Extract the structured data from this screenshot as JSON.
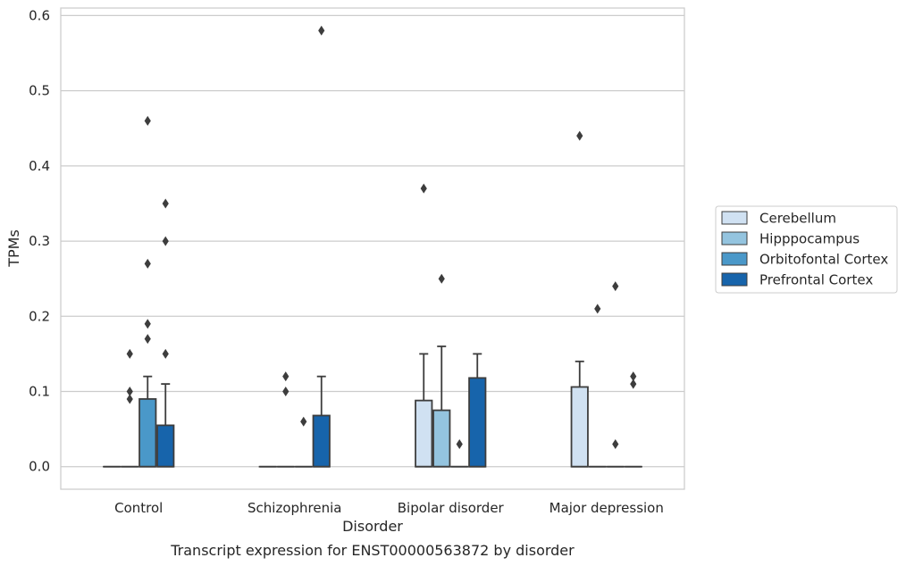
{
  "chart_data": {
    "type": "box",
    "title": "Transcript expression for ENST00000563872 by disorder",
    "xlabel": "Disorder",
    "ylabel": "TPMs",
    "ylim": [
      -0.03,
      0.61
    ],
    "yticks": [
      "0.0",
      "0.1",
      "0.2",
      "0.3",
      "0.4",
      "0.5",
      "0.6"
    ],
    "grid": "horizontal",
    "legend_position": "right",
    "categories": [
      "Control",
      "Schizophrenia",
      "Bipolar disorder",
      "Major depression"
    ],
    "series": [
      {
        "name": "Cerebellum",
        "color": "#d0e1f2",
        "boxes": [
          {
            "q1": 0,
            "median": 0,
            "q3": 0,
            "whisker_high": 0,
            "outliers": []
          },
          {
            "q1": 0,
            "median": 0,
            "q3": 0,
            "whisker_high": 0,
            "outliers": []
          },
          {
            "q1": 0,
            "median": 0,
            "q3": 0.088,
            "whisker_high": 0.15,
            "outliers": [
              0.37
            ]
          },
          {
            "q1": 0,
            "median": 0,
            "q3": 0.106,
            "whisker_high": 0.14,
            "outliers": [
              0.44
            ]
          }
        ]
      },
      {
        "name": "Hipppocampus",
        "color": "#94c4df",
        "boxes": [
          {
            "q1": 0,
            "median": 0,
            "q3": 0,
            "whisker_high": 0,
            "outliers": [
              0.15,
              0.1,
              0.09
            ]
          },
          {
            "q1": 0,
            "median": 0,
            "q3": 0,
            "whisker_high": 0,
            "outliers": [
              0.12,
              0.1
            ]
          },
          {
            "q1": 0,
            "median": 0,
            "q3": 0.075,
            "whisker_high": 0.16,
            "outliers": [
              0.25
            ]
          },
          {
            "q1": 0,
            "median": 0,
            "q3": 0,
            "whisker_high": 0,
            "outliers": [
              0.21
            ]
          }
        ]
      },
      {
        "name": "Orbitofontal Cortex",
        "color": "#4a98c9",
        "boxes": [
          {
            "q1": 0,
            "median": 0,
            "q3": 0.09,
            "whisker_high": 0.12,
            "outliers": [
              0.46,
              0.27,
              0.19,
              0.17
            ]
          },
          {
            "q1": 0,
            "median": 0,
            "q3": 0,
            "whisker_high": 0,
            "outliers": [
              0.06
            ]
          },
          {
            "q1": 0,
            "median": 0,
            "q3": 0,
            "whisker_high": 0,
            "outliers": [
              0.03
            ]
          },
          {
            "q1": 0,
            "median": 0,
            "q3": 0,
            "whisker_high": 0,
            "outliers": [
              0.24,
              0.03
            ]
          }
        ]
      },
      {
        "name": "Prefrontal Cortex",
        "color": "#1764ab",
        "boxes": [
          {
            "q1": 0,
            "median": 0,
            "q3": 0.055,
            "whisker_high": 0.11,
            "outliers": [
              0.35,
              0.3,
              0.15
            ]
          },
          {
            "q1": 0,
            "median": 0,
            "q3": 0.068,
            "whisker_high": 0.12,
            "outliers": [
              0.58
            ]
          },
          {
            "q1": 0,
            "median": 0,
            "q3": 0.118,
            "whisker_high": 0.15,
            "outliers": []
          },
          {
            "q1": 0,
            "median": 0,
            "q3": 0,
            "whisker_high": 0,
            "outliers": [
              0.12,
              0.11
            ]
          }
        ]
      }
    ]
  }
}
